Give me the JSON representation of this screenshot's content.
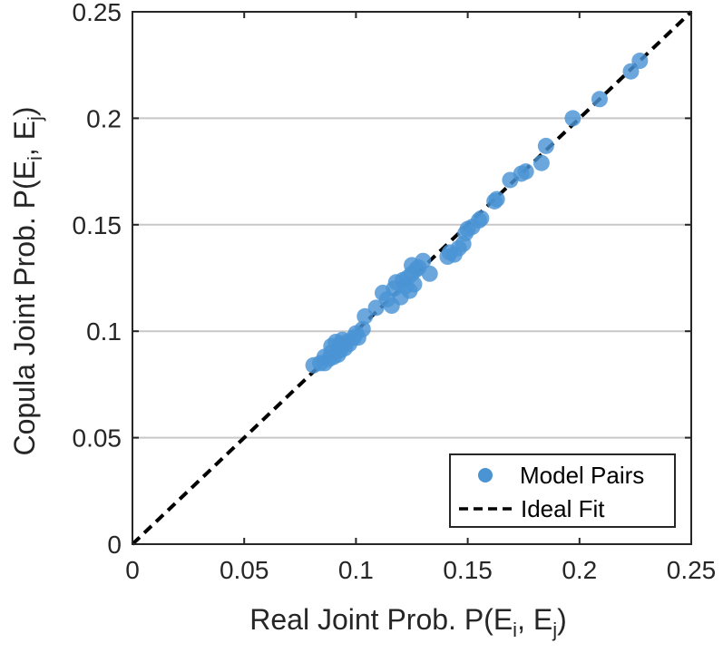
{
  "chart_data": {
    "type": "scatter",
    "title": "",
    "xlabel": {
      "prefix": "Real Joint Prob. P(E",
      "sub1": "i",
      "mid": ", E",
      "sub2": "j",
      "suffix": ")"
    },
    "ylabel": {
      "prefix": "Copula Joint Prob. P(E",
      "sub1": "i",
      "mid": ", E",
      "sub2": "j",
      "suffix": ")"
    },
    "xlim": [
      0,
      0.25
    ],
    "ylim": [
      0,
      0.25
    ],
    "xticks": [
      0,
      0.05,
      0.1,
      0.15,
      0.2,
      0.25
    ],
    "yticks": [
      0,
      0.05,
      0.1,
      0.15,
      0.2,
      0.25
    ],
    "xtick_labels": [
      "0",
      "0.05",
      "0.1",
      "0.15",
      "0.2",
      "0.25"
    ],
    "ytick_labels": [
      "0",
      "0.05",
      "0.1",
      "0.15",
      "0.2",
      "0.25"
    ],
    "grid": "horizontal",
    "legend_position": "bottom-right",
    "colors": {
      "points": "#4a94d4",
      "ideal": "#000000",
      "grid": "#c8c8c8",
      "axis": "#262626"
    },
    "series": [
      {
        "name": "Model Pairs",
        "kind": "scatter",
        "x": [
          0.081,
          0.084,
          0.086,
          0.086,
          0.088,
          0.089,
          0.089,
          0.09,
          0.091,
          0.092,
          0.093,
          0.093,
          0.094,
          0.095,
          0.096,
          0.097,
          0.099,
          0.1,
          0.101,
          0.103,
          0.104,
          0.109,
          0.112,
          0.114,
          0.116,
          0.117,
          0.118,
          0.12,
          0.121,
          0.122,
          0.123,
          0.124,
          0.125,
          0.125,
          0.126,
          0.127,
          0.128,
          0.13,
          0.133,
          0.141,
          0.142,
          0.144,
          0.146,
          0.148,
          0.149,
          0.15,
          0.152,
          0.155,
          0.156,
          0.162,
          0.163,
          0.169,
          0.174,
          0.176,
          0.183,
          0.185,
          0.197,
          0.209,
          0.223,
          0.227
        ],
        "y": [
          0.084,
          0.085,
          0.085,
          0.088,
          0.087,
          0.09,
          0.093,
          0.088,
          0.095,
          0.089,
          0.091,
          0.094,
          0.096,
          0.092,
          0.095,
          0.094,
          0.097,
          0.099,
          0.097,
          0.101,
          0.107,
          0.111,
          0.118,
          0.115,
          0.112,
          0.12,
          0.123,
          0.116,
          0.124,
          0.121,
          0.125,
          0.119,
          0.127,
          0.131,
          0.122,
          0.129,
          0.13,
          0.133,
          0.127,
          0.135,
          0.137,
          0.136,
          0.139,
          0.141,
          0.146,
          0.148,
          0.149,
          0.152,
          0.153,
          0.161,
          0.162,
          0.171,
          0.174,
          0.175,
          0.179,
          0.187,
          0.2,
          0.209,
          0.222,
          0.227
        ]
      },
      {
        "name": "Ideal Fit",
        "kind": "line",
        "style": "dashed",
        "x": [
          0,
          0.25
        ],
        "y": [
          0,
          0.25
        ]
      }
    ]
  }
}
